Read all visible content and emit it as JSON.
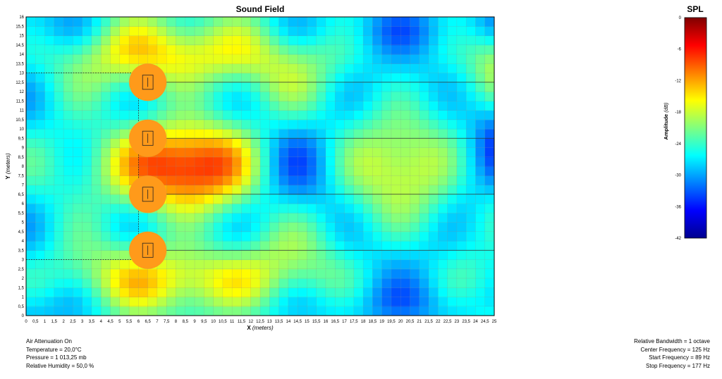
{
  "chart_data": [
    {
      "type": "heatmap",
      "title": "Sound Field",
      "xlabel": "X",
      "xlabel_unit": "(meters)",
      "ylabel": "Y",
      "ylabel_unit": "(meters)",
      "xlim": [
        0,
        25
      ],
      "ylim": [
        0,
        16
      ],
      "grid": true,
      "x_ticks": [
        "0",
        "0,5",
        "1",
        "1,5",
        "2",
        "2,5",
        "3",
        "3,5",
        "4",
        "4,5",
        "5",
        "5,5",
        "6",
        "6,5",
        "7",
        "7,5",
        "8",
        "8,5",
        "9",
        "9,5",
        "10",
        "10,5",
        "11",
        "11,5",
        "12",
        "12,5",
        "13",
        "13,5",
        "14",
        "14,5",
        "15",
        "15,5",
        "16",
        "16,5",
        "17",
        "17,5",
        "18",
        "18,5",
        "19",
        "19,5",
        "20",
        "20,5",
        "21",
        "21,5",
        "22",
        "22,5",
        "23",
        "23,5",
        "24",
        "24,5",
        "25"
      ],
      "y_ticks": [
        "0",
        "0,5",
        "1",
        "1,5",
        "2",
        "2,5",
        "3",
        "3,5",
        "4",
        "4,5",
        "5",
        "5,5",
        "6",
        "6,5",
        "7",
        "7,5",
        "8",
        "8,5",
        "9",
        "9,5",
        "10",
        "10,5",
        "11",
        "11,5",
        "12",
        "12,5",
        "13",
        "13,5",
        "14",
        "14,5",
        "15",
        "15,5",
        "16"
      ],
      "sources": [
        {
          "x": 6.5,
          "y": 3.5
        },
        {
          "x": 6.5,
          "y": 6.5
        },
        {
          "x": 6.5,
          "y": 9.5
        },
        {
          "x": 6.5,
          "y": 12.5
        }
      ],
      "array_extent": {
        "x": 6.0,
        "y_min": 3.0,
        "y_max": 13.0
      }
    },
    {
      "type": "colorbar",
      "title": "SPL",
      "label": "Amplitude",
      "label_unit": "(dB)",
      "range": [
        -42,
        0
      ],
      "ticks": [
        "0",
        "-6",
        "-12",
        "-18",
        "-24",
        "-30",
        "-36",
        "-42"
      ]
    }
  ],
  "info": {
    "left": [
      "Air Attenuation On",
      "Temperature = 20,0°C",
      "Pressure = 1 013,25  mb",
      "Relative Humidity = 50,0 %"
    ],
    "right": [
      "Relative Bandwidth = 1 octave",
      "Center Frequency = 125 Hz",
      "Start Frequency = 89 Hz",
      "Stop Frequency = 177 Hz"
    ]
  }
}
